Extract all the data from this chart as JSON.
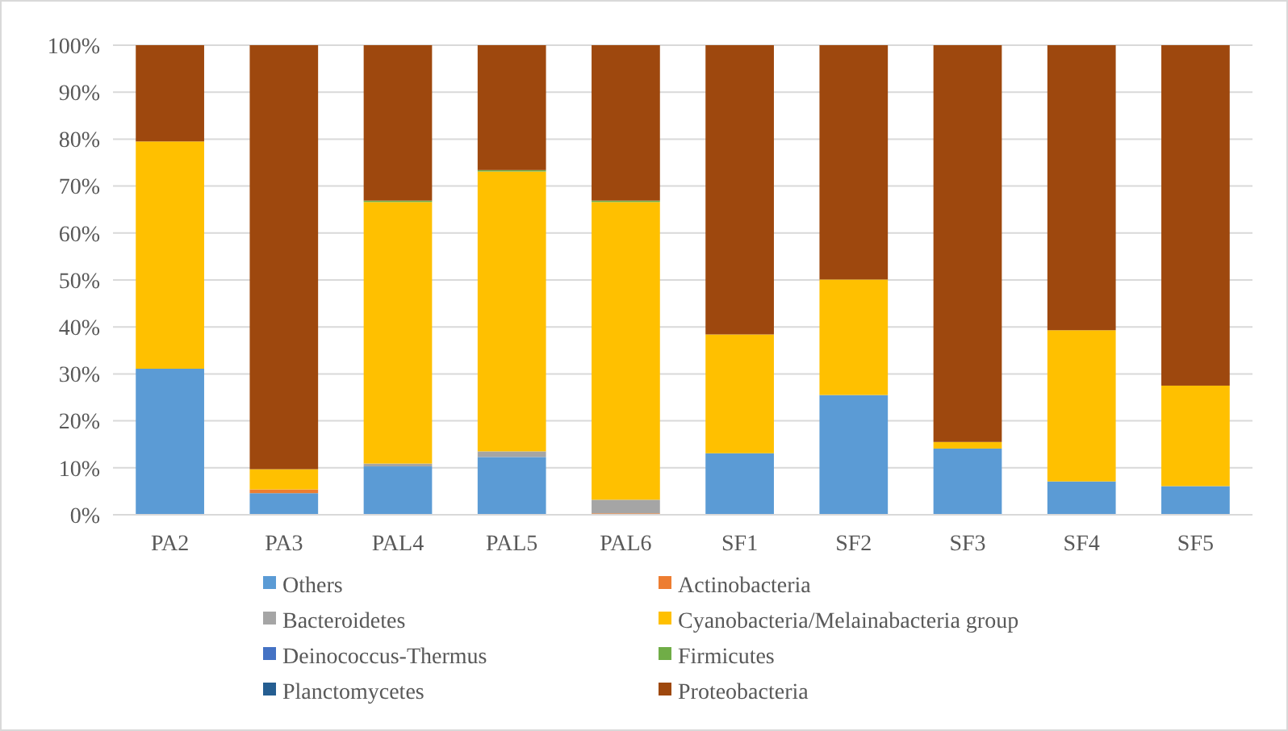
{
  "chart_data": {
    "type": "bar",
    "stacked": true,
    "categories": [
      "PA2",
      "PA3",
      "PAL4",
      "PAL5",
      "PAL6",
      "SF1",
      "SF2",
      "SF3",
      "SF4",
      "SF5"
    ],
    "series": [
      {
        "name": "Others",
        "color": "#5b9bd5",
        "values": [
          31.1,
          4.6,
          10.3,
          12.3,
          0,
          13.1,
          25.5,
          14.1,
          7.1,
          6.1
        ]
      },
      {
        "name": "Actinobacteria",
        "color": "#ed7d31",
        "values": [
          0,
          0.8,
          0,
          0,
          0.3,
          0,
          0,
          0,
          0,
          0
        ]
      },
      {
        "name": "Bacteroidetes",
        "color": "#a5a5a5",
        "values": [
          0,
          0,
          0.6,
          1.2,
          2.9,
          0,
          0,
          0,
          0,
          0
        ]
      },
      {
        "name": "Cyanobacteria/Melainabacteria group",
        "color": "#ffc000",
        "values": [
          48.4,
          4.3,
          55.7,
          59.6,
          63.4,
          25.3,
          24.6,
          1.4,
          32.2,
          21.4
        ]
      },
      {
        "name": "Deinococcus-Thermus",
        "color": "#4472c4",
        "values": [
          0,
          0,
          0,
          0,
          0,
          0,
          0,
          0,
          0,
          0
        ]
      },
      {
        "name": "Firmicutes",
        "color": "#70ad47",
        "values": [
          0,
          0,
          0.3,
          0.3,
          0.3,
          0,
          0,
          0,
          0,
          0
        ]
      },
      {
        "name": "Planctomycetes",
        "color": "#255e91",
        "values": [
          0,
          0,
          0,
          0,
          0,
          0,
          0,
          0,
          0,
          0
        ]
      },
      {
        "name": "Proteobacteria",
        "color": "#9e480e",
        "values": [
          20.5,
          90.3,
          33.1,
          26.6,
          33.1,
          61.6,
          49.9,
          84.5,
          60.7,
          72.5
        ]
      }
    ],
    "ylim": [
      0,
      100
    ],
    "yticks": [
      {
        "value": 0,
        "label": "0%"
      },
      {
        "value": 10,
        "label": "10%"
      },
      {
        "value": 20,
        "label": "20%"
      },
      {
        "value": 30,
        "label": "30%"
      },
      {
        "value": 40,
        "label": "40%"
      },
      {
        "value": 50,
        "label": "50%"
      },
      {
        "value": 60,
        "label": "60%"
      },
      {
        "value": 70,
        "label": "70%"
      },
      {
        "value": 80,
        "label": "80%"
      },
      {
        "value": 90,
        "label": "90%"
      },
      {
        "value": 100,
        "label": "100%"
      }
    ],
    "grid": "y",
    "legend": "bottom"
  }
}
